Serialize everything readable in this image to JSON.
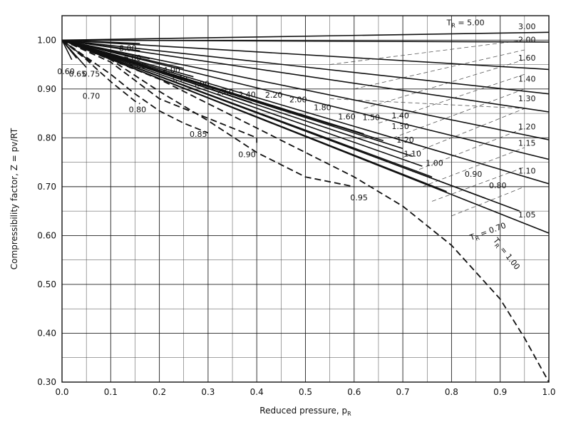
{
  "chart_data": {
    "type": "line",
    "title": "",
    "xlabel": "Reduced pressure, p",
    "xlabel_sub": "R",
    "ylabel": "Compressibility factor, Z = pv/RT",
    "xlim": [
      0.0,
      1.0
    ],
    "ylim": [
      0.3,
      1.05
    ],
    "x_ticks": [
      "0.0",
      "0.1",
      "0.2",
      "0.3",
      "0.4",
      "0.5",
      "0.6",
      "0.7",
      "0.8",
      "0.9",
      "1.0"
    ],
    "y_ticks": [
      "0.30",
      "0.40",
      "0.50",
      "0.60",
      "0.70",
      "0.80",
      "0.90",
      "1.00"
    ],
    "x_tick_values": [
      0.0,
      0.1,
      0.2,
      0.3,
      0.4,
      0.5,
      0.6,
      0.7,
      0.8,
      0.9,
      1.0
    ],
    "y_tick_values": [
      0.3,
      0.4,
      0.5,
      0.6,
      0.7,
      0.8,
      0.9,
      1.0
    ],
    "grid": true,
    "annotation_main": "T",
    "annotation_main_sub": "R",
    "annotation_main_value": " = 5.00",
    "annotation_tr_mid": "T",
    "annotation_tr_mid_sub": "R",
    "annotation_tr_mid_value": " = 0.70",
    "annotation_tr_low": "T",
    "annotation_tr_low_sub": "R",
    "annotation_tr_low_value": " = 1.00",
    "series": [
      {
        "label": "3.00",
        "style": "solid",
        "x": [
          0,
          1.0
        ],
        "y": [
          1.0,
          1.016
        ],
        "label_x": 0.955,
        "label_y": 1.022
      },
      {
        "label": "2.00",
        "style": "solid",
        "x": [
          0,
          1.0
        ],
        "y": [
          1.0,
          0.996
        ],
        "label_x": 0.955,
        "label_y": 0.995
      },
      {
        "label": "1.60",
        "style": "solid",
        "x": [
          0,
          1.0
        ],
        "y": [
          1.0,
          0.94
        ],
        "label_x": 0.955,
        "label_y": 0.958
      },
      {
        "label": "1.40",
        "style": "solid",
        "x": [
          0,
          1.0
        ],
        "y": [
          1.0,
          0.89
        ],
        "label_x": 0.955,
        "label_y": 0.915
      },
      {
        "label": "1.30",
        "style": "solid",
        "x": [
          0,
          1.0
        ],
        "y": [
          1.0,
          0.853
        ],
        "label_x": 0.955,
        "label_y": 0.875
      },
      {
        "label": "1.20",
        "style": "solid",
        "x": [
          0,
          1.0
        ],
        "y": [
          1.0,
          0.796
        ],
        "label_x": 0.955,
        "label_y": 0.817
      },
      {
        "label": "1.15",
        "style": "solid",
        "x": [
          0,
          1.0
        ],
        "y": [
          1.0,
          0.756
        ],
        "label_x": 0.955,
        "label_y": 0.784
      },
      {
        "label": "1.10",
        "style": "solid",
        "x": [
          0,
          1.0
        ],
        "y": [
          1.0,
          0.706
        ],
        "label_x": 0.955,
        "label_y": 0.727
      },
      {
        "label": "1.05",
        "style": "solid",
        "x": [
          0,
          1.0
        ],
        "y": [
          1.0,
          0.605
        ],
        "label_x": 0.955,
        "label_y": 0.637
      },
      {
        "label": "1.00",
        "style": "dashed",
        "x": [
          0,
          0.2,
          0.4,
          0.6,
          0.7,
          0.8,
          0.9,
          0.95,
          1.0
        ],
        "y": [
          1.0,
          0.92,
          0.82,
          0.72,
          0.66,
          0.58,
          0.47,
          0.39,
          0.3
        ]
      },
      {
        "label": "8.00",
        "style": "solid",
        "x": [
          0,
          0.16
        ],
        "y": [
          1.0,
          0.993
        ],
        "label_x": 0.135,
        "label_y": 0.978
      },
      {
        "label": "6.00",
        "style": "solid",
        "x": [
          0,
          0.16
        ],
        "y": [
          1.0,
          0.978
        ],
        "label_x": 0.145,
        "label_y": 0.958
      },
      {
        "label": "5.00",
        "style": "solid",
        "x": [
          0,
          0.18
        ],
        "y": [
          1.0,
          0.962
        ],
        "label_x": 0.155,
        "label_y": 0.942
      },
      {
        "label": "4.00",
        "style": "solid",
        "x": [
          0,
          0.25
        ],
        "y": [
          1.0,
          0.942
        ],
        "label_x": 0.225,
        "label_y": 0.933
      },
      {
        "label": "3.50",
        "style": "solid",
        "x": [
          0,
          0.27
        ],
        "y": [
          1.0,
          0.925
        ],
        "label_x": 0.24,
        "label_y": 0.915
      },
      {
        "label": "3.00",
        "style": "solid",
        "x": [
          0,
          0.3
        ],
        "y": [
          1.0,
          0.907
        ],
        "label_x": 0.285,
        "label_y": 0.905
      },
      {
        "label": "2.60",
        "style": "solid",
        "x": [
          0,
          0.35
        ],
        "y": [
          1.0,
          0.885
        ],
        "label_x": 0.335,
        "label_y": 0.888
      },
      {
        "label": "2.40",
        "style": "solid",
        "x": [
          0,
          0.39
        ],
        "y": [
          1.0,
          0.872
        ],
        "label_x": 0.38,
        "label_y": 0.883
      },
      {
        "label": "2.20",
        "style": "solid",
        "x": [
          0,
          0.45
        ],
        "y": [
          1.0,
          0.857
        ],
        "label_x": 0.435,
        "label_y": 0.882
      },
      {
        "label": "2.00",
        "style": "solid",
        "x": [
          0,
          0.51
        ],
        "y": [
          1.0,
          0.842
        ],
        "label_x": 0.485,
        "label_y": 0.873
      },
      {
        "label": "1.80",
        "style": "solid",
        "x": [
          0,
          0.56
        ],
        "y": [
          1.0,
          0.825
        ],
        "label_x": 0.535,
        "label_y": 0.857
      },
      {
        "label": "1.60",
        "style": "solid",
        "x": [
          0,
          0.62
        ],
        "y": [
          1.0,
          0.808
        ],
        "label_x": 0.585,
        "label_y": 0.838
      },
      {
        "label": "1.50",
        "style": "solid",
        "x": [
          0,
          0.66
        ],
        "y": [
          1.0,
          0.794
        ],
        "label_x": 0.635,
        "label_y": 0.836
      },
      {
        "label": "1.40",
        "style": "solid",
        "x": [
          0,
          0.7
        ],
        "y": [
          1.0,
          0.778
        ],
        "label_x": 0.695,
        "label_y": 0.84
      },
      {
        "label": "1.30",
        "style": "solid",
        "x": [
          0,
          0.72
        ],
        "y": [
          1.0,
          0.762
        ],
        "label_x": 0.695,
        "label_y": 0.818
      },
      {
        "label": "1.20",
        "style": "solid",
        "x": [
          0,
          0.74
        ],
        "y": [
          1.0,
          0.742
        ],
        "label_x": 0.705,
        "label_y": 0.79
      },
      {
        "label": "1.10",
        "style": "solid",
        "x": [
          0,
          0.76
        ],
        "y": [
          1.0,
          0.72
        ],
        "label_x": 0.72,
        "label_y": 0.762
      },
      {
        "label": "1.00",
        "style": "solid",
        "x": [
          0,
          0.79
        ],
        "y": [
          1.0,
          0.69
        ],
        "label_x": 0.765,
        "label_y": 0.743
      },
      {
        "label": "0.90",
        "style": "solid",
        "x": [
          0,
          0.87
        ],
        "y": [
          1.0,
          0.676
        ],
        "label_x": 0.845,
        "label_y": 0.72
      },
      {
        "label": "0.80",
        "style": "solid",
        "x": [
          0,
          0.94
        ],
        "y": [
          1.0,
          0.65
        ],
        "label_x": 0.895,
        "label_y": 0.697
      },
      {
        "label": "0.95",
        "style": "dashed",
        "x": [
          0,
          0.1,
          0.2,
          0.3,
          0.4,
          0.5,
          0.6
        ],
        "y": [
          1.0,
          0.96,
          0.895,
          0.835,
          0.77,
          0.72,
          0.7
        ],
        "label_x": 0.61,
        "label_y": 0.672
      },
      {
        "label": "0.90",
        "style": "dashed",
        "x": [
          0,
          0.1,
          0.2,
          0.3,
          0.4,
          0.4
        ],
        "y": [
          1.0,
          0.955,
          0.88,
          0.84,
          0.8,
          0.79
        ],
        "label_x": 0.38,
        "label_y": 0.76
      },
      {
        "label": "0.85",
        "style": "dashed",
        "x": [
          0,
          0.05,
          0.1,
          0.15,
          0.2,
          0.25,
          0.3
        ],
        "y": [
          1.0,
          0.965,
          0.93,
          0.89,
          0.855,
          0.83,
          0.81
        ],
        "label_x": 0.28,
        "label_y": 0.802
      },
      {
        "label": "0.80",
        "style": "dashed",
        "x": [
          0,
          0.05,
          0.1,
          0.15,
          0.16
        ],
        "y": [
          1.0,
          0.96,
          0.915,
          0.875,
          0.87
        ],
        "label_x": 0.155,
        "label_y": 0.852
      },
      {
        "label": "0.75",
        "style": "solid",
        "x": [
          0,
          0.06
        ],
        "y": [
          1.0,
          0.955
        ],
        "label_x": 0.06,
        "label_y": 0.925
      },
      {
        "label": "0.70",
        "style": "solid",
        "x": [
          0,
          0.05
        ],
        "y": [
          1.0,
          0.944
        ],
        "label_x": 0.06,
        "label_y": 0.88
      },
      {
        "label": "0.65",
        "style": "solid",
        "x": [
          0,
          0.03
        ],
        "y": [
          1.0,
          0.963
        ],
        "label_x": 0.032,
        "label_y": 0.925
      },
      {
        "label": "0.60",
        "style": "solid",
        "x": [
          0,
          0.02
        ],
        "y": [
          1.0,
          0.96
        ],
        "label_x": 0.008,
        "label_y": 0.93
      }
    ]
  }
}
